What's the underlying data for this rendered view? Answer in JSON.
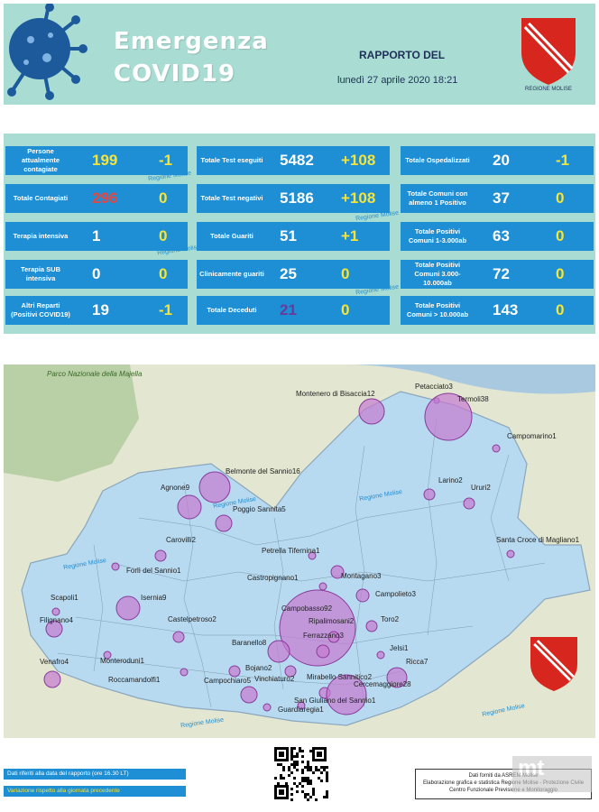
{
  "header": {
    "title_line1": "Emergenza",
    "title_line2": "COVID19",
    "report_label": "RAPPORTO DEL",
    "report_date": "lunedì 27 aprile 2020 18:21",
    "logo_text": "REGIONE MOLISE"
  },
  "stats": {
    "col1": [
      {
        "label": "Persone attualmente contagiate",
        "value": "199",
        "delta": "-1",
        "value_color": "#f5e43a"
      },
      {
        "label": "Totale Contagiati",
        "value": "296",
        "delta": "0",
        "value_color": "#e8453c"
      },
      {
        "label": "Terapia intensiva",
        "value": "1",
        "delta": "0",
        "value_color": "#ffffff"
      },
      {
        "label": "Terapia SUB intensiva",
        "value": "0",
        "delta": "0",
        "value_color": "#ffffff"
      },
      {
        "label": "Altri Reparti (Positivi COVID19)",
        "value": "19",
        "delta": "-1",
        "value_color": "#ffffff"
      }
    ],
    "col2": [
      {
        "label": "Totale Test eseguiti",
        "value": "5482",
        "delta": "+108",
        "value_color": "#ffffff"
      },
      {
        "label": "Totale Test negativi",
        "value": "5186",
        "delta": "+108",
        "value_color": "#ffffff"
      },
      {
        "label": "Totale Guariti",
        "value": "51",
        "delta": "+1",
        "value_color": "#ffffff"
      },
      {
        "label": "Clinicamente guariti",
        "value": "25",
        "delta": "0",
        "value_color": "#ffffff"
      },
      {
        "label": "Totale Deceduti",
        "value": "21",
        "delta": "0",
        "value_color": "#6a3a9a"
      }
    ],
    "col3": [
      {
        "label": "Totale Ospedalizzati",
        "value": "20",
        "delta": "-1",
        "value_color": "#ffffff"
      },
      {
        "label": "Totale Comuni con almeno 1 Positivo",
        "value": "37",
        "delta": "0",
        "value_color": "#ffffff"
      },
      {
        "label": "Totale Positivi Comuni 1-3.000ab",
        "value": "63",
        "delta": "0",
        "value_color": "#ffffff"
      },
      {
        "label": "Totale Positivi Comuni 3.000-10.000ab",
        "value": "72",
        "delta": "0",
        "value_color": "#ffffff"
      },
      {
        "label": "Totale Positivi Comuni > 10.000ab",
        "value": "143",
        "delta": "0",
        "value_color": "#ffffff"
      }
    ],
    "watermark": "Regione Molise"
  },
  "map": {
    "park_label": "Parco Nazionale della Majella",
    "region_label": "Regione Molise",
    "towns": [
      {
        "name": "Montenero di Bisaccia12",
        "r": 14
      },
      {
        "name": "Petacciato3",
        "r": 3
      },
      {
        "name": "Termoli38",
        "r": 26
      },
      {
        "name": "Campomarino1",
        "r": 4
      },
      {
        "name": "Belmonte del Sannio16",
        "r": 17
      },
      {
        "name": "Agnone9",
        "r": 13
      },
      {
        "name": "Poggio Sannita5",
        "r": 9
      },
      {
        "name": "Larino2",
        "r": 6
      },
      {
        "name": "Ururi2",
        "r": 6
      },
      {
        "name": "Santa Croce di Magliano1",
        "r": 4
      },
      {
        "name": "Carovilli2",
        "r": 6
      },
      {
        "name": "Petrella Tifernina1",
        "r": 4
      },
      {
        "name": "Forlì del Sannio1",
        "r": 4
      },
      {
        "name": "Montagano3",
        "r": 7
      },
      {
        "name": "Castropignano1",
        "r": 4
      },
      {
        "name": "Campolieto3",
        "r": 7
      },
      {
        "name": "Scapoli1",
        "r": 4
      },
      {
        "name": "Isernia9",
        "r": 13
      },
      {
        "name": "Campobasso92",
        "r": 42
      },
      {
        "name": "Ripalimosani2",
        "r": 6
      },
      {
        "name": "Ferrazzano3",
        "r": 7
      },
      {
        "name": "Toro2",
        "r": 6
      },
      {
        "name": "Filignano4",
        "r": 9
      },
      {
        "name": "Castelpetroso2",
        "r": 6
      },
      {
        "name": "Baranello8",
        "r": 12
      },
      {
        "name": "Jelsi1",
        "r": 4
      },
      {
        "name": "Monteroduni1",
        "r": 4
      },
      {
        "name": "Venafro4",
        "r": 9
      },
      {
        "name": "Bojano2",
        "r": 6
      },
      {
        "name": "Ricca7",
        "r": 11
      },
      {
        "name": "Roccamandolfi1",
        "r": 4
      },
      {
        "name": "Campochiaro5",
        "r": 9
      },
      {
        "name": "Vinchiaturo2",
        "r": 6
      },
      {
        "name": "Mirabello Sannitico2",
        "r": 6
      },
      {
        "name": "Cercemaggiore28",
        "r": 22
      },
      {
        "name": "San Giuliano del Sannio1",
        "r": 4
      },
      {
        "name": "Guardiaregia1",
        "r": 4
      }
    ]
  },
  "footer": {
    "note1": "Dati riferiti alla data del rapporto (ore 16.30 LT)",
    "note2": "Variazione rispetto alla giornata precedente",
    "credits1": "Dati forniti da ASREM Molise",
    "credits2": "Elaborazione grafica e statistica Regione Molise - Protezione Civile",
    "credits3": "Centro Funzionale Previsione e Monitoraggio",
    "corner": "mt"
  }
}
